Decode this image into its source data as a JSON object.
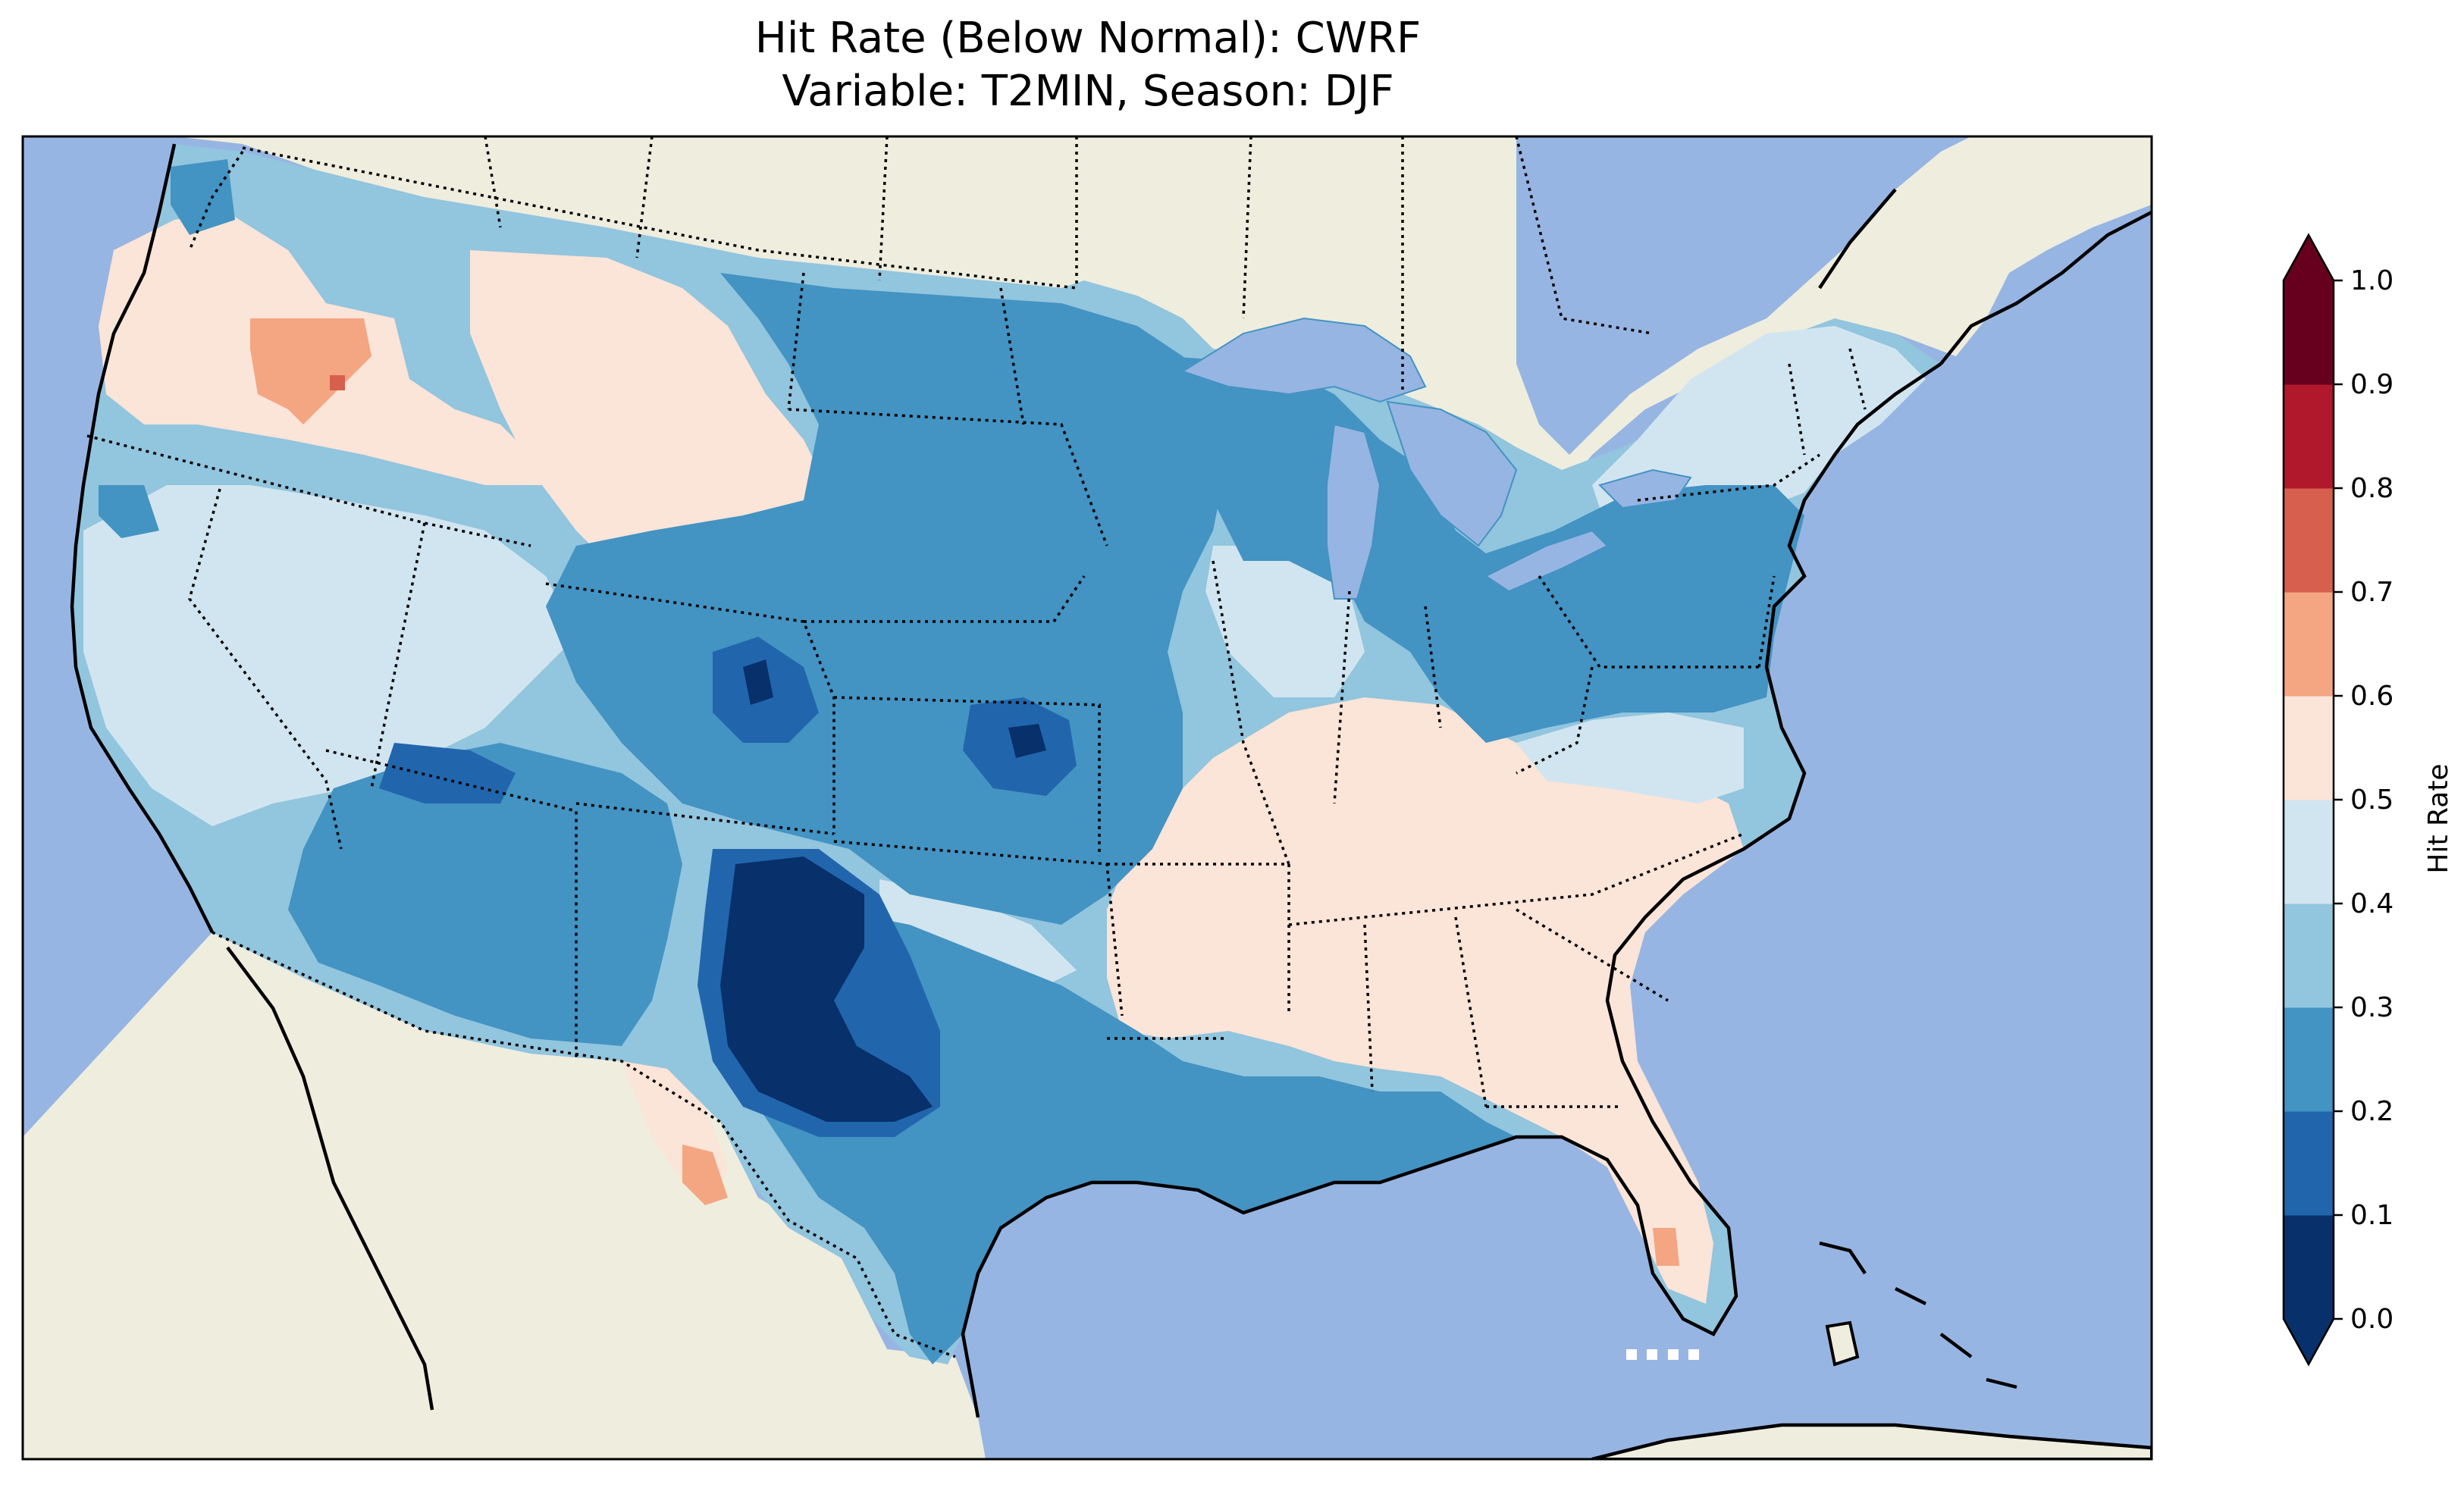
{
  "title": {
    "line1": "Hit Rate (Below Normal): CWRF",
    "line2": "Variable: T2MIN, Season: DJF"
  },
  "colors": {
    "ocean": "#97b5e2",
    "land": "#efedde",
    "coast": "#000000"
  },
  "colorbar": {
    "label": "Hit Rate",
    "ticks": [
      "0.0",
      "0.1",
      "0.2",
      "0.3",
      "0.4",
      "0.5",
      "0.6",
      "0.7",
      "0.8",
      "0.9",
      "1.0"
    ],
    "colors": [
      "#08306b",
      "#2166ac",
      "#4393c3",
      "#92c5de",
      "#d1e5f0",
      "#fbe4d8",
      "#f4a582",
      "#d6604d",
      "#b2182b",
      "#67001f"
    ],
    "under_color": "#08306b",
    "over_color": "#67001f",
    "extend": "both"
  },
  "map_data": {
    "region": "Contiguous United States",
    "field": "Hit rate of below-normal T2MIN category, DJF",
    "pattern": {
      "low_0.0_0.1": [
        "southeastern New Mexico",
        "western Texas",
        "northeastern Colorado",
        "central Kansas"
      ],
      "low_0.1_0.3": [
        "Great Plains",
        "Upper Midwest",
        "Great Lakes",
        "Ohio Valley",
        "Mid-Atlantic",
        "Gulf Coast of Texas and Louisiana"
      ],
      "mid_0.3_0.5": [
        "Great Basin",
        "California",
        "Pacific Northwest coast",
        "New England"
      ],
      "high_0.5_0.7": [
        "Oregon/Idaho",
        "Montana",
        "Southeast",
        "Florida",
        "Big Bend Texas"
      ]
    }
  }
}
